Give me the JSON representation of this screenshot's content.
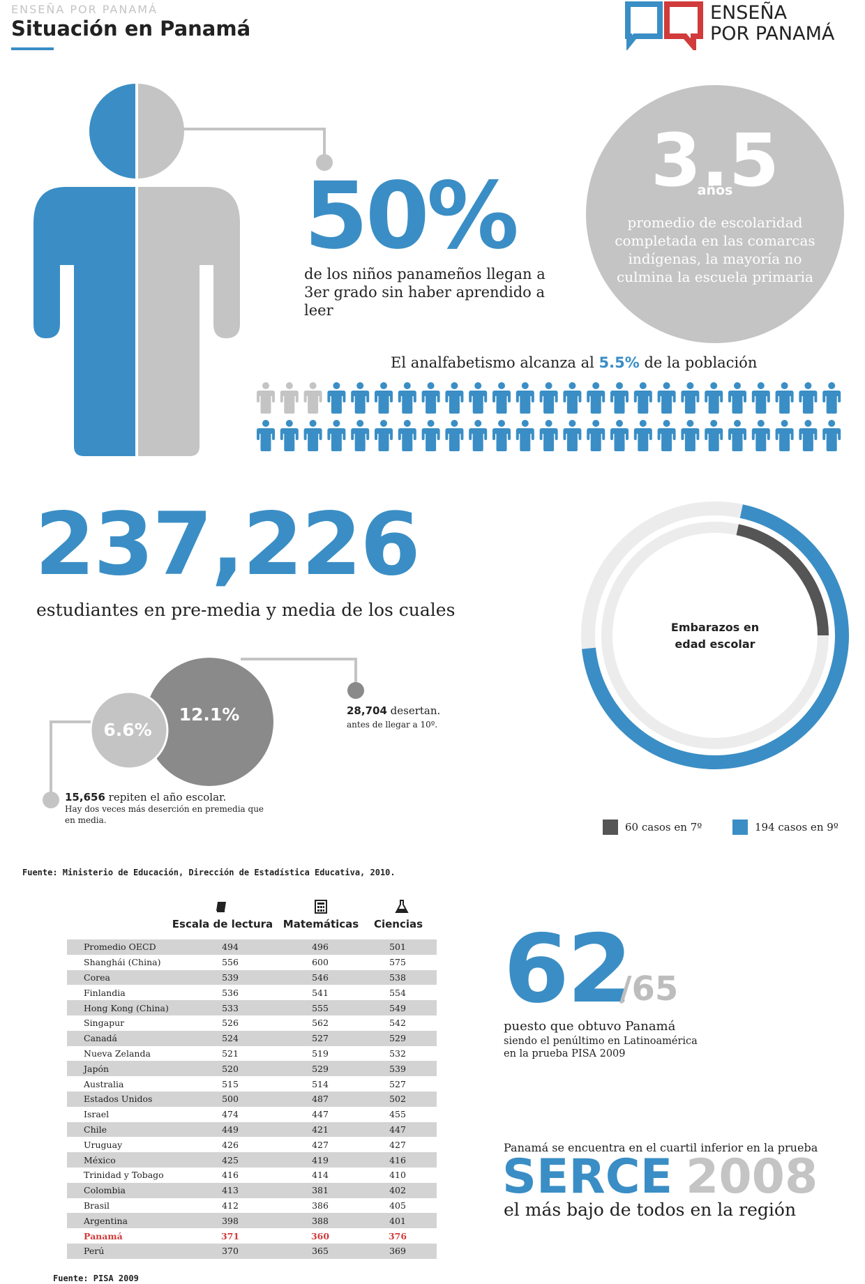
{
  "header": {
    "kicker": "ENSEÑA POR PANAMÁ",
    "title": "Situación en Panamá",
    "logo_line1": "ENSEÑA",
    "logo_line2": "POR PANAMÁ"
  },
  "reading_stat": {
    "value": "50%",
    "desc_line1": "de los niños panameños llegan a",
    "desc_line2": "3er grado sin haber aprendido a leer"
  },
  "schooling_stat": {
    "value": "3.5",
    "unit": "años",
    "desc": "promedio de escolaridad completada en las comarcas indígenas, la mayoría no culmina la escuela primaria"
  },
  "illiteracy": {
    "text_before": "El analfabetismo alcanza al ",
    "pct": "5.5%",
    "text_after": " de la población",
    "people_total": 50,
    "people_grey": 3
  },
  "students": {
    "value": "237,226",
    "desc": "estudiantes en pre-media y media de los cuales"
  },
  "dropout": {
    "desertion_pct": "12.1%",
    "repeat_pct": "6.6%",
    "desertion_count": "28,704",
    "desertion_text": " desertan.",
    "desertion_note": "antes de llegar a 10º.",
    "repeat_count": "15,656",
    "repeat_text": " repiten el año escolar.",
    "repeat_note": "Hay dos veces más deserción en premedia que en media."
  },
  "pregnancy": {
    "title_line1": "Embarazos en",
    "title_line2": "edad escolar",
    "legend_7": "60 casos en 7º",
    "legend_9": "194 casos en 9º"
  },
  "colors": {
    "blue": "#3a8ec5",
    "grey_light": "#c4c4c4",
    "grey_dark": "#8a8a8a",
    "grey_darker": "#555555",
    "highlight_red": "#d13b3b"
  },
  "source1": "Fuente: Ministerio de Educación, Dirección de Estadística Educativa, 2010.",
  "pisa_table": {
    "headers": [
      "Escala de lectura",
      "Matemáticas",
      "Ciencias"
    ],
    "header_icons": [
      "book-icon",
      "calculator-icon",
      "flask-icon"
    ],
    "rows": [
      [
        "Promedio OECD",
        "494",
        "496",
        "501"
      ],
      [
        "Shanghái (China)",
        "556",
        "600",
        "575"
      ],
      [
        "Corea",
        "539",
        "546",
        "538"
      ],
      [
        "Finlandia",
        "536",
        "541",
        "554"
      ],
      [
        "Hong Kong (China)",
        "533",
        "555",
        "549"
      ],
      [
        "Singapur",
        "526",
        "562",
        "542"
      ],
      [
        "Canadá",
        "524",
        "527",
        "529"
      ],
      [
        "Nueva Zelanda",
        "521",
        "519",
        "532"
      ],
      [
        "Japón",
        "520",
        "529",
        "539"
      ],
      [
        "Australia",
        "515",
        "514",
        "527"
      ],
      [
        "Estados Unidos",
        "500",
        "487",
        "502"
      ],
      [
        "Israel",
        "474",
        "447",
        "455"
      ],
      [
        "Chile",
        "449",
        "421",
        "447"
      ],
      [
        "Uruguay",
        "426",
        "427",
        "427"
      ],
      [
        "México",
        "425",
        "419",
        "416"
      ],
      [
        "Trinidad y Tobago",
        "416",
        "414",
        "410"
      ],
      [
        "Colombia",
        "413",
        "381",
        "402"
      ],
      [
        "Brasil",
        "412",
        "386",
        "405"
      ],
      [
        "Argentina",
        "398",
        "388",
        "401"
      ],
      [
        "Panamá",
        "371",
        "360",
        "376"
      ],
      [
        "Perú",
        "370",
        "365",
        "369"
      ]
    ],
    "highlight_row": "Panamá"
  },
  "ranking": {
    "value": "62",
    "of": "/65",
    "desc": "puesto que obtuvo Panamá",
    "note_line1": "siendo el penúltimo en Latinoamérica",
    "note_line2": "en la prueba PISA 2009"
  },
  "serce": {
    "intro": "Panamá se encuentra en el cuartil inferior en la prueba",
    "word": "SERCE",
    "year": "2008",
    "desc": "el más bajo de todos en la región"
  },
  "source2": "Fuente: PISA 2009",
  "chart_data": [
    {
      "type": "pie",
      "categories": [
        "7º",
        "9º"
      ],
      "values": [
        60,
        194
      ],
      "title": "Embarazos en edad escolar"
    },
    {
      "type": "table",
      "categories": [
        "Escala de lectura",
        "Matemáticas",
        "Ciencias"
      ],
      "series": [
        {
          "name": "Promedio OECD",
          "values": [
            494,
            496,
            501
          ]
        },
        {
          "name": "Shanghái (China)",
          "values": [
            556,
            600,
            575
          ]
        },
        {
          "name": "Corea",
          "values": [
            539,
            546,
            538
          ]
        },
        {
          "name": "Finlandia",
          "values": [
            536,
            541,
            554
          ]
        },
        {
          "name": "Hong Kong (China)",
          "values": [
            533,
            555,
            549
          ]
        },
        {
          "name": "Singapur",
          "values": [
            526,
            562,
            542
          ]
        },
        {
          "name": "Canadá",
          "values": [
            524,
            527,
            529
          ]
        },
        {
          "name": "Nueva Zelanda",
          "values": [
            521,
            519,
            532
          ]
        },
        {
          "name": "Japón",
          "values": [
            520,
            529,
            539
          ]
        },
        {
          "name": "Australia",
          "values": [
            515,
            514,
            527
          ]
        },
        {
          "name": "Estados Unidos",
          "values": [
            500,
            487,
            502
          ]
        },
        {
          "name": "Israel",
          "values": [
            474,
            447,
            455
          ]
        },
        {
          "name": "Chile",
          "values": [
            449,
            421,
            447
          ]
        },
        {
          "name": "Uruguay",
          "values": [
            426,
            427,
            427
          ]
        },
        {
          "name": "México",
          "values": [
            425,
            419,
            416
          ]
        },
        {
          "name": "Trinidad y Tobago",
          "values": [
            416,
            414,
            410
          ]
        },
        {
          "name": "Colombia",
          "values": [
            413,
            381,
            402
          ]
        },
        {
          "name": "Brasil",
          "values": [
            412,
            386,
            405
          ]
        },
        {
          "name": "Argentina",
          "values": [
            398,
            388,
            401
          ]
        },
        {
          "name": "Panamá",
          "values": [
            371,
            360,
            376
          ]
        },
        {
          "name": "Perú",
          "values": [
            370,
            365,
            369
          ]
        }
      ]
    }
  ]
}
